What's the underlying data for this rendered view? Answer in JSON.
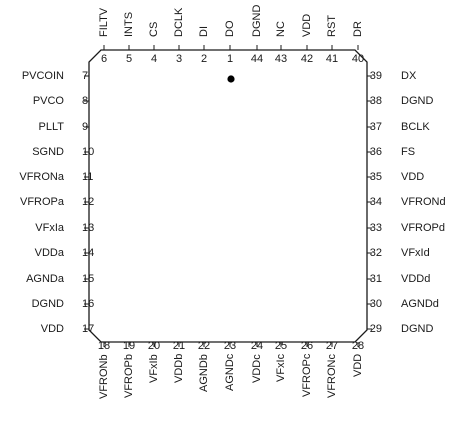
{
  "package": {
    "top": [
      {
        "num": "6",
        "name": "FILTV"
      },
      {
        "num": "5",
        "name": "INTS"
      },
      {
        "num": "4",
        "name": "CS"
      },
      {
        "num": "3",
        "name": "DCLK"
      },
      {
        "num": "2",
        "name": "DI"
      },
      {
        "num": "1",
        "name": "DO"
      },
      {
        "num": "44",
        "name": "DGND"
      },
      {
        "num": "43",
        "name": "NC"
      },
      {
        "num": "42",
        "name": "VDD"
      },
      {
        "num": "41",
        "name": "RST"
      },
      {
        "num": "40",
        "name": "DR"
      }
    ],
    "left": [
      {
        "num": "7",
        "name": "PVCOIN"
      },
      {
        "num": "8",
        "name": "PVCO"
      },
      {
        "num": "9",
        "name": "PLLT"
      },
      {
        "num": "10",
        "name": "SGND"
      },
      {
        "num": "11",
        "name": "VFRONa"
      },
      {
        "num": "12",
        "name": "VFROPa"
      },
      {
        "num": "13",
        "name": "VFxIa"
      },
      {
        "num": "14",
        "name": "VDDa"
      },
      {
        "num": "15",
        "name": "AGNDa"
      },
      {
        "num": "16",
        "name": "DGND"
      },
      {
        "num": "17",
        "name": "VDD"
      }
    ],
    "right": [
      {
        "num": "39",
        "name": "DX"
      },
      {
        "num": "38",
        "name": "DGND"
      },
      {
        "num": "37",
        "name": "BCLK"
      },
      {
        "num": "36",
        "name": "FS"
      },
      {
        "num": "35",
        "name": "VDD"
      },
      {
        "num": "34",
        "name": "VFRONd"
      },
      {
        "num": "33",
        "name": "VFROPd"
      },
      {
        "num": "32",
        "name": "VFxId"
      },
      {
        "num": "31",
        "name": "VDDd"
      },
      {
        "num": "30",
        "name": "AGNDd"
      },
      {
        "num": "29",
        "name": "DGND"
      }
    ],
    "bottom": [
      {
        "num": "18",
        "name": "VFRONb"
      },
      {
        "num": "19",
        "name": "VFROPb"
      },
      {
        "num": "20",
        "name": "VFxIb"
      },
      {
        "num": "21",
        "name": "VDDb"
      },
      {
        "num": "22",
        "name": "AGNDb"
      },
      {
        "num": "23",
        "name": "AGNDc"
      },
      {
        "num": "24",
        "name": "VDDc"
      },
      {
        "num": "25",
        "name": "VFxIc"
      },
      {
        "num": "26",
        "name": "VFROPc"
      },
      {
        "num": "27",
        "name": "VFRONc"
      },
      {
        "num": "28",
        "name": "VDD"
      }
    ]
  }
}
